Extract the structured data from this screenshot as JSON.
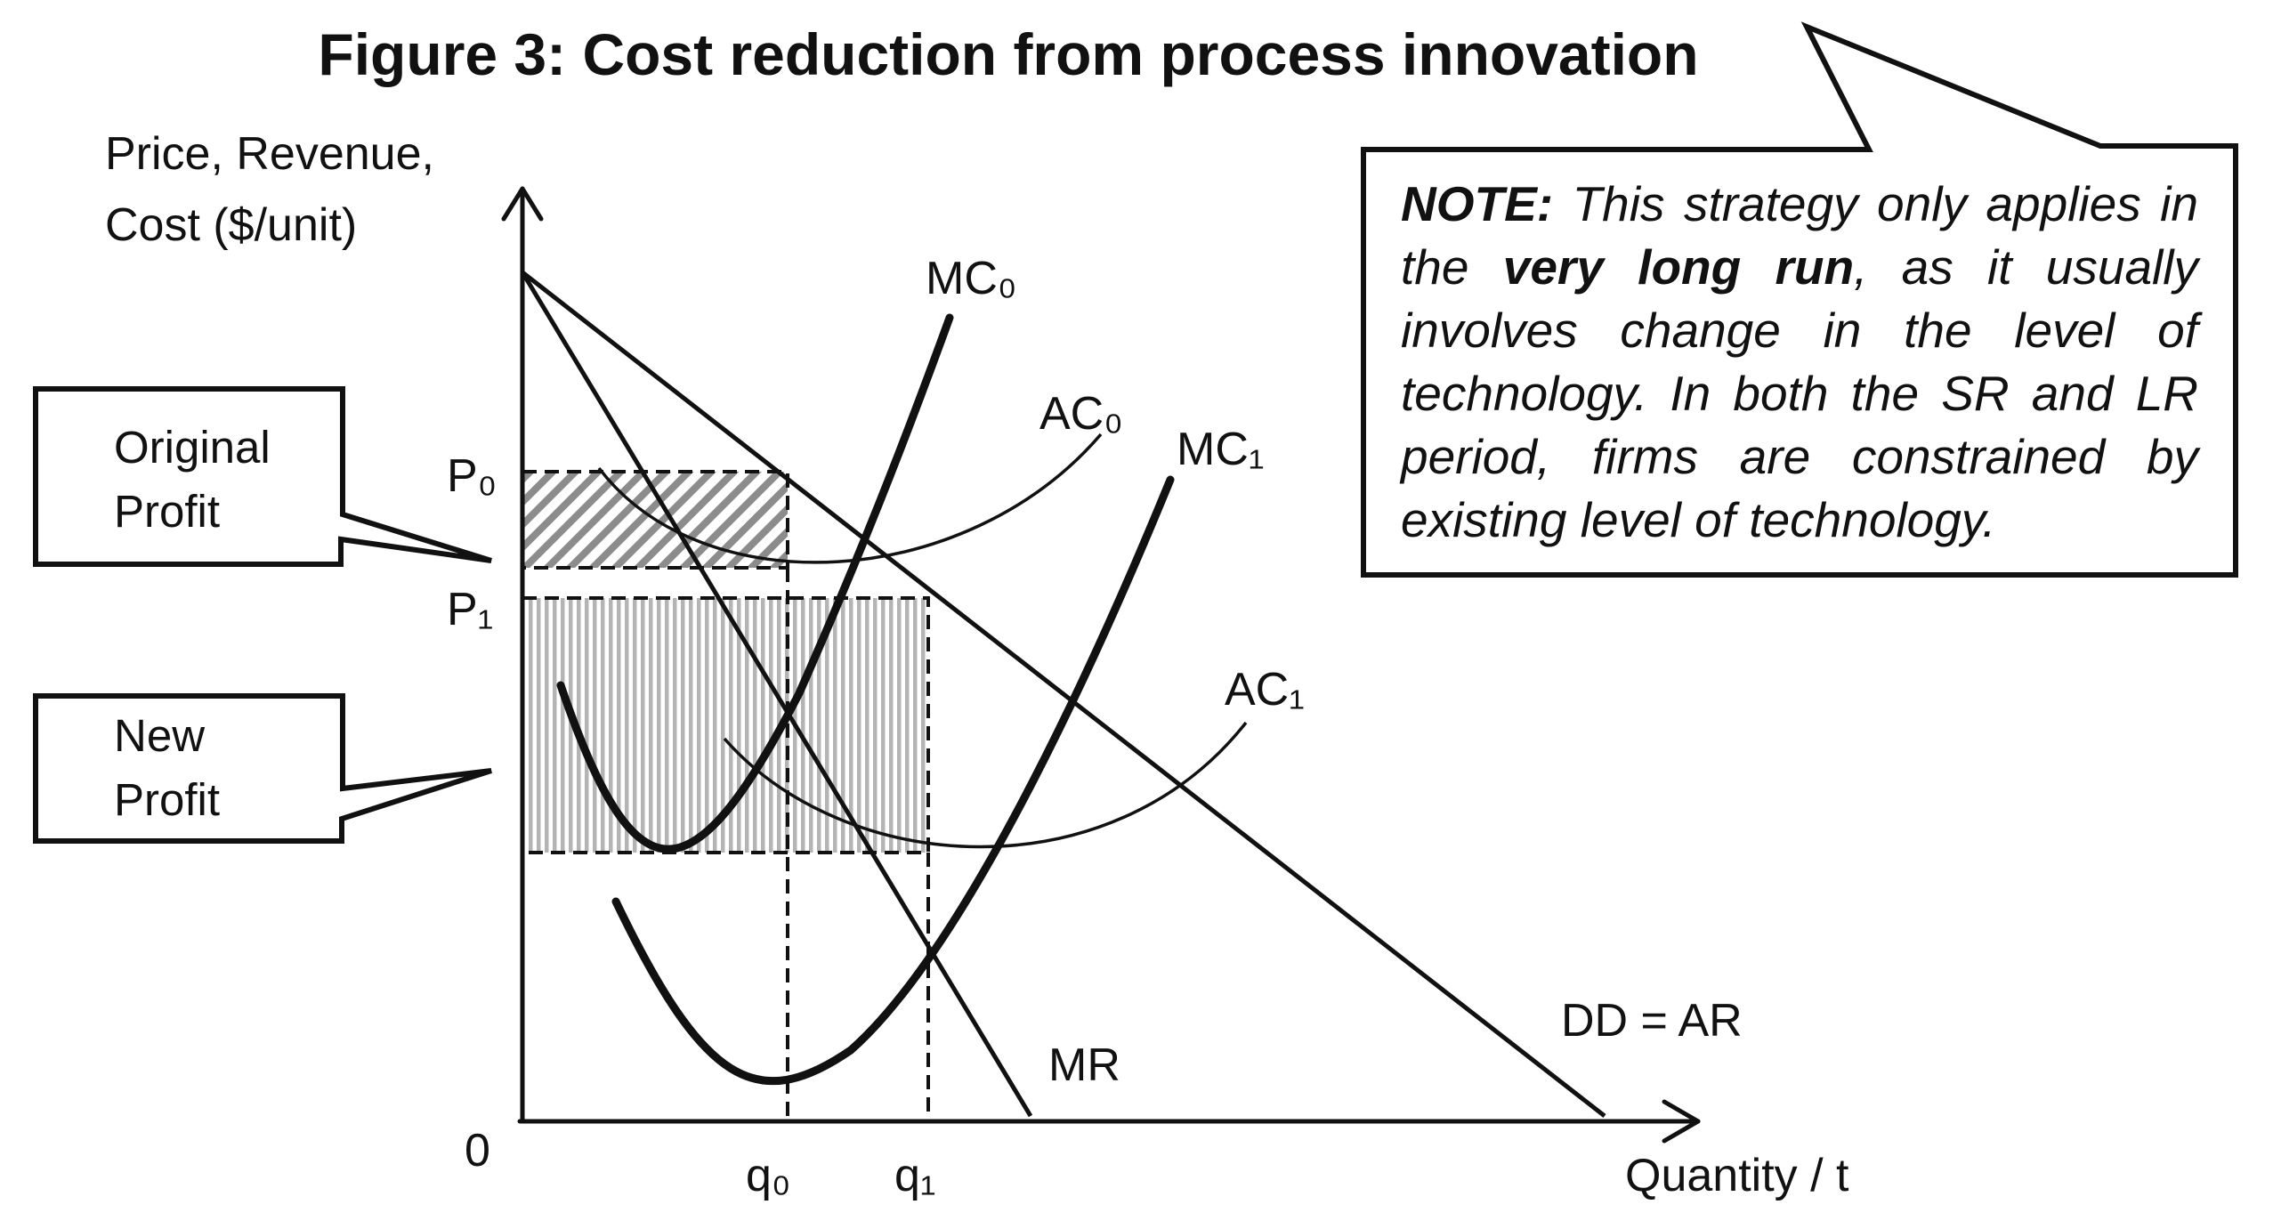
{
  "title": "Figure 3: Cost reduction from process innovation",
  "y_axis_label_line1": "Price, Revenue,",
  "y_axis_label_line2": "Cost ($/unit)",
  "x_axis_label": "Quantity / t",
  "origin_label": "0",
  "price_labels": {
    "p0": "P₀",
    "p1": "P₁"
  },
  "quantity_labels": {
    "q0": "q₀",
    "q1": "q₁"
  },
  "curve_labels": {
    "mc0": "MC₀",
    "ac0": "AC₀",
    "mc1": "MC₁",
    "ac1": "AC₁",
    "mr": "MR",
    "dd": "DD = AR"
  },
  "callouts": {
    "original_line1": "Original",
    "original_line2": "Profit",
    "new_line1": "New",
    "new_line2": "Profit"
  },
  "note": {
    "lead": "NOTE:",
    "text_a": " This strategy only applies in the ",
    "emphasis": "very long run",
    "text_b": ", as it usually involves change in the level of technology. In both the SR and LR period, firms are constrained by existing level of technology."
  }
}
